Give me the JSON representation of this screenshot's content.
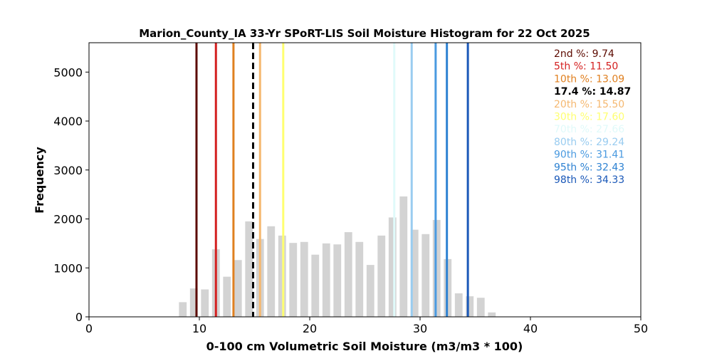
{
  "chart_data": {
    "type": "bar",
    "title": "Marion_County_IA 33-Yr SPoRT-LIS Soil Moisture Histogram for 22 Oct 2025",
    "xlabel": "0-100 cm Volumetric Soil Moisture (m3/m3 * 100)",
    "ylabel": "Frequency",
    "xlim": [
      0,
      50
    ],
    "ylim": [
      0,
      5600
    ],
    "xticks": [
      0,
      10,
      20,
      30,
      40,
      50
    ],
    "yticks": [
      0,
      1000,
      2000,
      3000,
      4000,
      5000
    ],
    "bar_color": "#d3d3d3",
    "bin_width": 0.7,
    "bins": [
      {
        "x": 8.5,
        "count": 300
      },
      {
        "x": 9.5,
        "count": 580
      },
      {
        "x": 10.5,
        "count": 560
      },
      {
        "x": 11.5,
        "count": 1380
      },
      {
        "x": 12.5,
        "count": 820
      },
      {
        "x": 13.5,
        "count": 1160
      },
      {
        "x": 14.5,
        "count": 1950
      },
      {
        "x": 15.5,
        "count": 1590
      },
      {
        "x": 16.5,
        "count": 1850
      },
      {
        "x": 17.5,
        "count": 1660
      },
      {
        "x": 18.5,
        "count": 1510
      },
      {
        "x": 19.5,
        "count": 1530
      },
      {
        "x": 20.5,
        "count": 1270
      },
      {
        "x": 21.5,
        "count": 1500
      },
      {
        "x": 22.5,
        "count": 1480
      },
      {
        "x": 23.5,
        "count": 1730
      },
      {
        "x": 24.5,
        "count": 1530
      },
      {
        "x": 25.5,
        "count": 1060
      },
      {
        "x": 26.5,
        "count": 1660
      },
      {
        "x": 27.5,
        "count": 2030
      },
      {
        "x": 28.5,
        "count": 2460
      },
      {
        "x": 29.5,
        "count": 1780
      },
      {
        "x": 30.5,
        "count": 1690
      },
      {
        "x": 31.5,
        "count": 1980
      },
      {
        "x": 32.5,
        "count": 1180
      },
      {
        "x": 33.5,
        "count": 480
      },
      {
        "x": 34.5,
        "count": 420
      },
      {
        "x": 35.5,
        "count": 390
      },
      {
        "x": 36.5,
        "count": 90
      }
    ],
    "reference_lines": [
      {
        "label": "2nd %: 9.74",
        "value": 9.74,
        "color": "#5c0a00",
        "dashed": false
      },
      {
        "label": "5th %: 11.50",
        "value": 11.5,
        "color": "#d42020",
        "dashed": false
      },
      {
        "label": "10th %: 13.09",
        "value": 13.09,
        "color": "#e08020",
        "dashed": false
      },
      {
        "label": "17.4 %: 14.87",
        "value": 14.87,
        "color": "#000000",
        "dashed": true
      },
      {
        "label": "20th %: 15.50",
        "value": 15.5,
        "color": "#f5b870",
        "dashed": false
      },
      {
        "label": "30th %: 17.60",
        "value": 17.6,
        "color": "#ffff70",
        "dashed": false
      },
      {
        "label": "70th %: 27.66",
        "value": 27.66,
        "color": "#e0fafa",
        "dashed": false
      },
      {
        "label": "80th %: 29.24",
        "value": 29.24,
        "color": "#99ccf0",
        "dashed": false
      },
      {
        "label": "90th %: 31.41",
        "value": 31.41,
        "color": "#4a9ae0",
        "dashed": false
      },
      {
        "label": "95th %: 32.43",
        "value": 32.43,
        "color": "#2e82d2",
        "dashed": false
      },
      {
        "label": "98th %: 34.33",
        "value": 34.33,
        "color": "#1a58b8",
        "dashed": false
      }
    ],
    "legend_placement": "top-right",
    "grid": false
  }
}
